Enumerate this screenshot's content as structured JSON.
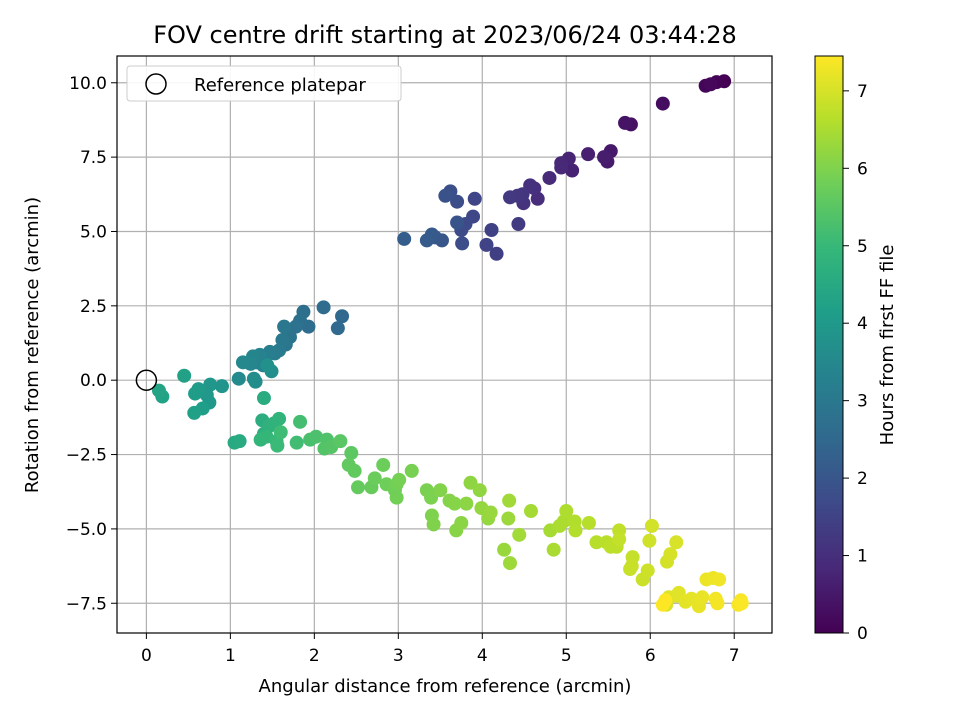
{
  "chart_data": {
    "type": "scatter",
    "title": "FOV centre drift starting at 2023/06/24 03:44:28",
    "xlabel": "Angular distance from reference (arcmin)",
    "ylabel": "Rotation from reference (arcmin)",
    "xlim": [
      -0.35,
      7.45
    ],
    "ylim": [
      -8.5,
      10.9
    ],
    "xticks": [
      "0",
      "1",
      "2",
      "3",
      "4",
      "5",
      "6",
      "7"
    ],
    "yticks": [
      "−7.5",
      "−5.0",
      "−2.5",
      "0.0",
      "2.5",
      "5.0",
      "7.5",
      "10.0"
    ],
    "grid": true,
    "legend_position": "top-left",
    "legend": [
      {
        "label": "Reference platepar",
        "marker": "open-circle",
        "x": 0,
        "y": 0
      }
    ],
    "colorbar": {
      "label": "Hours from first FF file",
      "range": [
        0,
        7.45
      ],
      "ticks": [
        "0",
        "1",
        "2",
        "3",
        "4",
        "5",
        "6",
        "7"
      ],
      "colormap": "viridis",
      "stops": [
        "#440154",
        "#482878",
        "#3e4989",
        "#31688e",
        "#26828e",
        "#1f9e89",
        "#35b779",
        "#6ece58",
        "#b5de2b",
        "#fde725"
      ]
    },
    "points": [
      [
        6.88,
        10.05,
        0.0
      ],
      [
        6.79,
        10.02,
        0.05
      ],
      [
        6.66,
        9.9,
        0.1
      ],
      [
        6.72,
        9.95,
        0.15
      ],
      [
        6.15,
        9.3,
        0.25
      ],
      [
        5.77,
        8.6,
        0.35
      ],
      [
        5.7,
        8.65,
        0.4
      ],
      [
        5.53,
        7.7,
        0.5
      ],
      [
        5.49,
        7.35,
        0.55
      ],
      [
        5.45,
        7.5,
        0.6
      ],
      [
        5.26,
        7.6,
        0.65
      ],
      [
        5.07,
        7.05,
        0.7
      ],
      [
        5.03,
        7.45,
        0.75
      ],
      [
        4.94,
        7.3,
        0.8
      ],
      [
        4.94,
        7.15,
        0.85
      ],
      [
        4.8,
        6.8,
        0.9
      ],
      [
        4.66,
        6.1,
        0.95
      ],
      [
        4.62,
        6.45,
        1.0
      ],
      [
        4.57,
        6.55,
        1.05
      ],
      [
        4.49,
        5.95,
        1.1
      ],
      [
        4.48,
        6.25,
        1.15
      ],
      [
        4.42,
        6.2,
        1.2
      ],
      [
        4.33,
        6.15,
        1.25
      ],
      [
        4.43,
        5.25,
        1.3
      ],
      [
        4.17,
        4.25,
        1.4
      ],
      [
        4.11,
        5.05,
        1.45
      ],
      [
        4.05,
        4.55,
        1.5
      ],
      [
        3.91,
        6.1,
        1.55
      ],
      [
        3.89,
        5.5,
        1.6
      ],
      [
        3.8,
        5.25,
        1.65
      ],
      [
        3.75,
        5.05,
        1.7
      ],
      [
        3.76,
        4.6,
        1.75
      ],
      [
        3.7,
        6.0,
        1.8
      ],
      [
        3.62,
        6.35,
        1.85
      ],
      [
        3.56,
        6.2,
        1.9
      ],
      [
        3.7,
        5.3,
        1.95
      ],
      [
        3.52,
        4.7,
        2.0
      ],
      [
        3.44,
        4.8,
        2.05
      ],
      [
        3.4,
        4.9,
        2.1
      ],
      [
        3.34,
        4.7,
        2.15
      ],
      [
        3.07,
        4.75,
        2.2
      ],
      [
        2.33,
        2.15,
        2.5
      ],
      [
        2.28,
        1.75,
        2.55
      ],
      [
        2.11,
        2.45,
        2.6
      ],
      [
        1.93,
        1.8,
        2.65
      ],
      [
        1.87,
        2.3,
        2.7
      ],
      [
        1.83,
        2.0,
        2.75
      ],
      [
        1.78,
        1.8,
        2.8
      ],
      [
        1.71,
        1.45,
        2.85
      ],
      [
        1.66,
        1.2,
        2.9
      ],
      [
        1.64,
        1.8,
        2.95
      ],
      [
        1.62,
        1.35,
        3.0
      ],
      [
        1.58,
        1.0,
        3.05
      ],
      [
        1.53,
        0.9,
        3.1
      ],
      [
        1.47,
        0.95,
        3.15
      ],
      [
        1.42,
        0.75,
        3.2
      ],
      [
        1.39,
        0.5,
        3.25
      ],
      [
        1.35,
        0.85,
        3.3
      ],
      [
        1.31,
        0.6,
        3.35
      ],
      [
        1.27,
        0.8,
        3.4
      ],
      [
        1.24,
        0.55,
        3.45
      ],
      [
        1.15,
        0.6,
        3.5
      ],
      [
        1.1,
        0.05,
        3.55
      ],
      [
        1.28,
        0.05,
        3.6
      ],
      [
        1.3,
        -0.05,
        3.65
      ],
      [
        1.49,
        0.3,
        3.7
      ],
      [
        1.44,
        0.5,
        3.75
      ],
      [
        0.9,
        -0.2,
        3.85
      ],
      [
        0.76,
        -0.15,
        3.9
      ],
      [
        0.72,
        -0.5,
        3.95
      ],
      [
        0.75,
        -0.75,
        4.0
      ],
      [
        0.62,
        -0.3,
        4.05
      ],
      [
        0.58,
        -0.45,
        4.1
      ],
      [
        0.67,
        -0.95,
        4.15
      ],
      [
        0.57,
        -1.1,
        4.2
      ],
      [
        0.45,
        0.15,
        4.25
      ],
      [
        0.19,
        -0.55,
        4.3
      ],
      [
        0.15,
        -0.35,
        4.35
      ],
      [
        1.05,
        -2.1,
        4.5
      ],
      [
        1.11,
        -2.05,
        4.55
      ],
      [
        1.4,
        -0.6,
        4.6
      ],
      [
        1.38,
        -1.35,
        4.65
      ],
      [
        1.4,
        -1.8,
        4.7
      ],
      [
        1.46,
        -1.55,
        4.75
      ],
      [
        1.52,
        -1.45,
        4.8
      ],
      [
        1.58,
        -1.3,
        4.85
      ],
      [
        1.36,
        -2.0,
        4.9
      ],
      [
        1.43,
        -1.9,
        4.95
      ],
      [
        1.55,
        -2.05,
        5.0
      ],
      [
        1.56,
        -2.2,
        5.05
      ],
      [
        1.6,
        -1.75,
        5.1
      ],
      [
        1.79,
        -2.1,
        5.15
      ],
      [
        1.83,
        -1.4,
        5.2
      ],
      [
        1.95,
        -2.0,
        5.25
      ],
      [
        2.02,
        -1.9,
        5.3
      ],
      [
        2.15,
        -2.0,
        5.35
      ],
      [
        2.12,
        -2.3,
        5.4
      ],
      [
        2.2,
        -2.25,
        5.45
      ],
      [
        2.31,
        -2.05,
        5.5
      ],
      [
        2.44,
        -2.45,
        5.55
      ],
      [
        2.41,
        -2.85,
        5.6
      ],
      [
        2.48,
        -3.05,
        5.62
      ],
      [
        2.52,
        -3.6,
        5.65
      ],
      [
        2.68,
        -3.6,
        5.7
      ],
      [
        2.72,
        -3.3,
        5.72
      ],
      [
        2.82,
        -2.85,
        5.75
      ],
      [
        2.86,
        -3.5,
        5.78
      ],
      [
        2.96,
        -3.7,
        5.8
      ],
      [
        2.98,
        -3.95,
        5.83
      ],
      [
        2.98,
        -3.5,
        5.85
      ],
      [
        3.01,
        -3.35,
        5.88
      ],
      [
        3.16,
        -3.05,
        5.9
      ],
      [
        3.34,
        -3.7,
        5.93
      ],
      [
        3.39,
        -3.95,
        5.95
      ],
      [
        3.4,
        -4.55,
        5.98
      ],
      [
        3.42,
        -4.85,
        6.0
      ],
      [
        3.5,
        -3.7,
        6.03
      ],
      [
        3.61,
        -4.05,
        6.05
      ],
      [
        3.67,
        -4.15,
        6.08
      ],
      [
        3.69,
        -5.05,
        6.1
      ],
      [
        3.75,
        -4.8,
        6.13
      ],
      [
        3.81,
        -4.15,
        6.15
      ],
      [
        3.86,
        -3.45,
        6.18
      ],
      [
        3.97,
        -3.7,
        6.2
      ],
      [
        3.99,
        -4.3,
        6.23
      ],
      [
        4.07,
        -4.65,
        6.25
      ],
      [
        4.1,
        -4.45,
        6.28
      ],
      [
        4.26,
        -5.7,
        6.3
      ],
      [
        4.31,
        -4.65,
        6.33
      ],
      [
        4.33,
        -6.15,
        6.35
      ],
      [
        4.32,
        -4.05,
        6.38
      ],
      [
        4.44,
        -5.2,
        6.4
      ],
      [
        4.58,
        -4.4,
        6.43
      ],
      [
        4.81,
        -5.05,
        6.45
      ],
      [
        4.85,
        -5.7,
        6.48
      ],
      [
        4.92,
        -4.9,
        6.5
      ],
      [
        4.97,
        -4.75,
        6.53
      ],
      [
        5.0,
        -4.4,
        6.55
      ],
      [
        5.1,
        -4.75,
        6.58
      ],
      [
        5.11,
        -5.05,
        6.6
      ],
      [
        5.27,
        -4.8,
        6.63
      ],
      [
        5.36,
        -5.45,
        6.65
      ],
      [
        5.48,
        -5.45,
        6.68
      ],
      [
        5.53,
        -5.6,
        6.7
      ],
      [
        5.6,
        -5.6,
        6.72
      ],
      [
        5.63,
        -5.05,
        6.75
      ],
      [
        5.63,
        -5.35,
        6.78
      ],
      [
        5.79,
        -5.95,
        6.8
      ],
      [
        5.76,
        -6.35,
        6.83
      ],
      [
        5.78,
        -6.25,
        6.85
      ],
      [
        5.91,
        -6.7,
        6.88
      ],
      [
        5.97,
        -6.4,
        6.9
      ],
      [
        5.99,
        -5.4,
        6.92
      ],
      [
        6.02,
        -4.9,
        6.95
      ],
      [
        6.2,
        -6.1,
        6.97
      ],
      [
        6.24,
        -5.85,
        7.0
      ],
      [
        6.31,
        -5.45,
        7.02
      ],
      [
        6.19,
        -7.55,
        7.05
      ],
      [
        6.22,
        -7.3,
        7.07
      ],
      [
        6.31,
        -7.25,
        7.1
      ],
      [
        6.34,
        -7.15,
        7.12
      ],
      [
        6.42,
        -7.45,
        7.15
      ],
      [
        6.49,
        -7.35,
        7.17
      ],
      [
        6.58,
        -7.6,
        7.2
      ],
      [
        6.62,
        -7.3,
        7.22
      ],
      [
        6.67,
        -6.7,
        7.25
      ],
      [
        6.75,
        -6.65,
        7.27
      ],
      [
        6.82,
        -6.7,
        7.3
      ],
      [
        6.78,
        -7.35,
        7.32
      ],
      [
        6.8,
        -7.5,
        7.35
      ],
      [
        7.05,
        -7.55,
        7.38
      ],
      [
        7.08,
        -7.4,
        7.4
      ],
      [
        7.09,
        -7.5,
        7.42
      ],
      [
        6.15,
        -7.55,
        7.43
      ],
      [
        6.18,
        -7.4,
        7.45
      ]
    ]
  }
}
